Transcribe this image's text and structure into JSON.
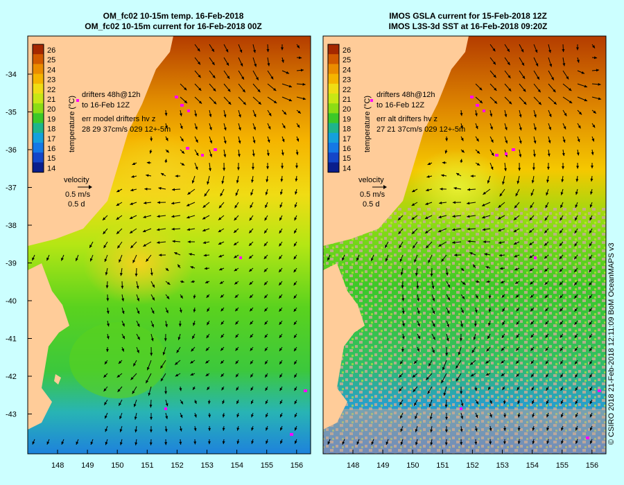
{
  "left_panel": {
    "title_line1": "OM_fc02 10-15m temp. 16-Feb-2018",
    "title_line2": "OM_fc02 10-15m current for 16-Feb-2018 00Z",
    "legend": {
      "drifters_line1": "drifters 48h@12h",
      "drifters_line2": "to 16-Feb 12Z",
      "err_line1": "err model drifters hv z",
      "err_line2": "28 29 37cm/s 029 12+-5m"
    },
    "velocity": {
      "label": "velocity",
      "speed": "0.5 m/s",
      "duration": "0.5 d"
    }
  },
  "right_panel": {
    "title_line1": "IMOS GSLA current for 15-Feb-2018 12Z",
    "title_line2": "IMOS L3S-3d SST at 16-Feb-2018 09:20Z",
    "legend": {
      "drifters_line1": "drifters 48h@12h",
      "drifters_line2": "to 16-Feb 12Z",
      "err_line1": "err alt drifters hv z",
      "err_line2": "27 21 37cm/s 029 12+-5m"
    },
    "velocity": {
      "label": "velocity",
      "speed": "0.5 m/s",
      "duration": "0.5 d"
    }
  },
  "colorbar": {
    "label": "temperature (°C)",
    "ticks": [
      "26",
      "25",
      "24",
      "23",
      "22",
      "21",
      "20",
      "19",
      "18",
      "17",
      "16",
      "15",
      "14"
    ],
    "colors": [
      "#a52800",
      "#d25a00",
      "#eb8c00",
      "#f5b400",
      "#f0dc14",
      "#c8e614",
      "#8cdc14",
      "#3cc828",
      "#1eb48c",
      "#14a0dc",
      "#1478e6",
      "#1446c8",
      "#0a1e8c"
    ]
  },
  "lat_ticks": [
    "-34",
    "-35",
    "-36",
    "-37",
    "-38",
    "-39",
    "-40",
    "-41",
    "-42",
    "-43"
  ],
  "lon_ticks": [
    "148",
    "149",
    "150",
    "151",
    "152",
    "153",
    "154",
    "155",
    "156"
  ],
  "credit": "© CSIRO 2018   21-Feb-2018 12:11:09 BoM OceanMAPS v3",
  "colors": {
    "land": "#ffcc99",
    "background": "#ccffff",
    "drifter": "#ff00ff",
    "no_data": "#c8aa96"
  }
}
